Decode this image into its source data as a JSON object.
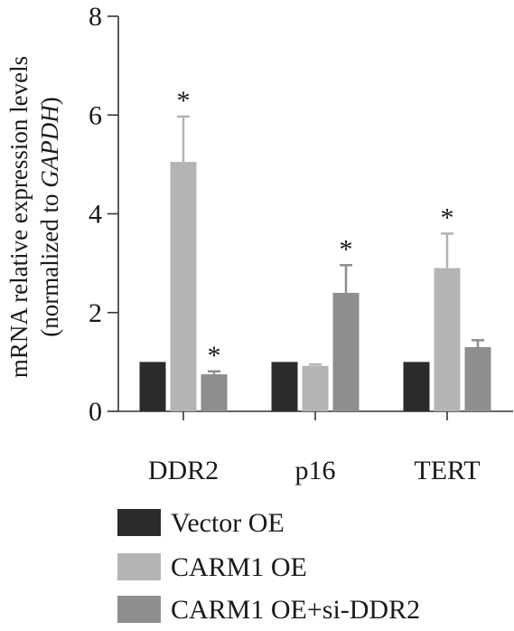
{
  "chart_data": {
    "type": "bar",
    "ylabel_line1": "mRNA relative expression levels",
    "ylabel_line2_prefix": "(normalized to ",
    "ylabel_line2_gene": "GAPDH",
    "ylabel_line2_suffix": ")",
    "ylim": [
      0,
      8
    ],
    "yticks": [
      "0",
      "2",
      "4",
      "6",
      "8"
    ],
    "categories": [
      "DDR2",
      "p16",
      "TERT"
    ],
    "series": [
      {
        "name": "Vector OE",
        "color": "#2b2b2b",
        "values": [
          1.0,
          1.0,
          1.0
        ],
        "errors": [
          0,
          0,
          0
        ],
        "sig": [
          "",
          "",
          ""
        ]
      },
      {
        "name": "CARM1 OE",
        "color": "#b3b4b6",
        "values": [
          5.05,
          0.92,
          2.9
        ],
        "errors": [
          0.92,
          0.03,
          0.7
        ],
        "sig": [
          "*",
          "",
          "*"
        ]
      },
      {
        "name": "CARM1 OE+si-DDR2",
        "color": "#8d8e90",
        "values": [
          0.75,
          2.4,
          1.3
        ],
        "errors": [
          0.06,
          0.56,
          0.14
        ],
        "sig": [
          "*",
          "*",
          ""
        ]
      }
    ],
    "grid": false,
    "legend_position": "bottom-left"
  }
}
